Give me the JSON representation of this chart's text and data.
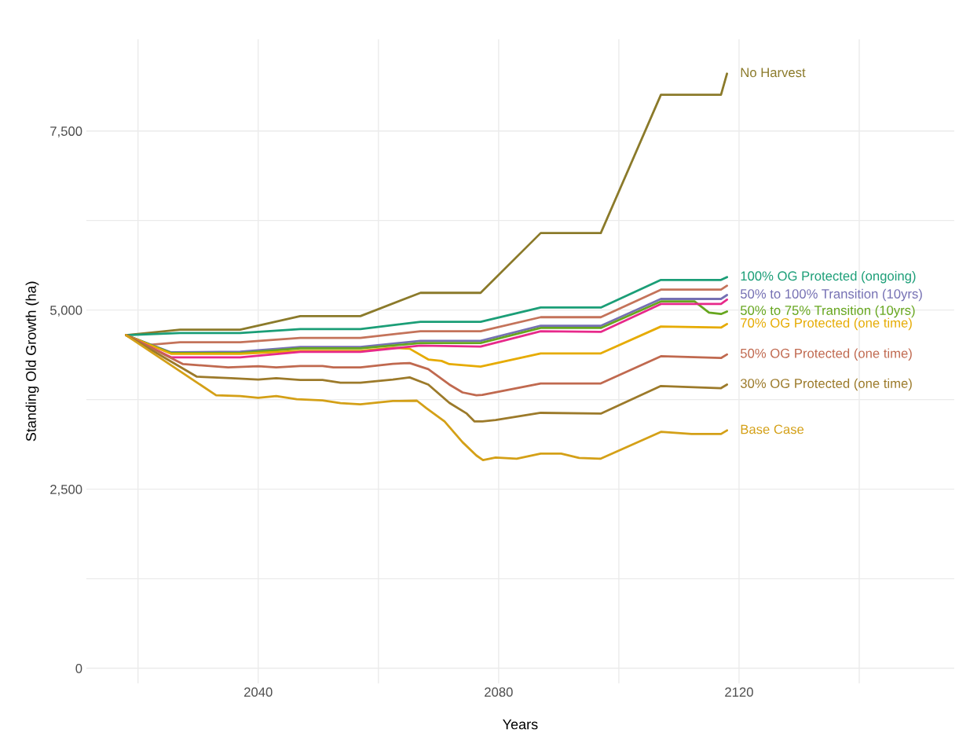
{
  "chart_data": {
    "type": "line",
    "xlabel": "Years",
    "ylabel": "Standing Old Growth (ha)",
    "xlim": [
      2011.4,
      2155.8
    ],
    "ylim": [
      -210,
      8780
    ],
    "xticks": [
      {
        "value": 2020,
        "label": null
      },
      2040,
      {
        "value": 2060,
        "label": null
      },
      2080,
      {
        "value": 2100,
        "label": null
      },
      2120,
      {
        "value": 2140,
        "label": null
      }
    ],
    "yticks": [
      0,
      {
        "value": 1250,
        "label": null
      },
      {
        "value": 2500,
        "label": "2,500"
      },
      {
        "value": 3750,
        "label": null
      },
      {
        "value": 5000,
        "label": "5,000"
      },
      {
        "value": 6250,
        "label": null
      },
      {
        "value": 7500,
        "label": "7,500"
      }
    ],
    "grid": true,
    "series": [
      {
        "name": "No Harvest",
        "color": "#8b7a2a",
        "x": [
          2018,
          2027,
          2037,
          2047,
          2057,
          2067,
          2077,
          2087,
          2097,
          2107,
          2117,
          2118
        ],
        "values": [
          4650,
          4725,
          4725,
          4915,
          4915,
          5240,
          5240,
          6075,
          6075,
          8005,
          8005,
          8300
        ]
      },
      {
        "name": "100% OG Protected (ongoing)",
        "color": "#1b9e77",
        "x": [
          2018,
          2027,
          2037,
          2047,
          2057,
          2067,
          2077,
          2087,
          2097,
          2107,
          2117,
          2118
        ],
        "values": [
          4650,
          4680,
          4680,
          4735,
          4735,
          4835,
          4835,
          5035,
          5035,
          5420,
          5420,
          5460
        ]
      },
      {
        "color": "#c4735a",
        "x": [
          2018,
          2022,
          2027,
          2037,
          2047,
          2057,
          2067,
          2077,
          2087,
          2097,
          2107,
          2117,
          2118
        ],
        "values": [
          4650,
          4515,
          4550,
          4550,
          4610,
          4610,
          4705,
          4705,
          4900,
          4900,
          5285,
          5285,
          5340
        ]
      },
      {
        "name": "50% to 100% Transition (10yrs)",
        "color": "#7570b3",
        "x": [
          2018,
          2025.5,
          2037,
          2047,
          2057,
          2067,
          2077,
          2087,
          2097,
          2107,
          2117,
          2118
        ],
        "values": [
          4650,
          4410,
          4420,
          4485,
          4485,
          4570,
          4570,
          4780,
          4780,
          5155,
          5155,
          5210
        ]
      },
      {
        "name": "50% to 75% Transition (10yrs)",
        "color": "#66a61e",
        "x": [
          2018,
          2025.5,
          2037,
          2047,
          2057,
          2067,
          2077,
          2087,
          2097,
          2107,
          2112.6,
          2115,
          2117,
          2118
        ],
        "values": [
          4650,
          4400,
          4400,
          4465,
          4465,
          4540,
          4540,
          4750,
          4750,
          5120,
          5120,
          4965,
          4945,
          4980
        ]
      },
      {
        "name": "70% OG Protected (one time)",
        "color": "#e6ab02",
        "x": [
          2018,
          2025.5,
          2037,
          2047,
          2057,
          2062.4,
          2065.2,
          2068.3,
          2070.5,
          2071.8,
          2077,
          2087,
          2097,
          2107,
          2117,
          2118
        ],
        "values": [
          4650,
          4390,
          4390,
          4430,
          4430,
          4475,
          4460,
          4310,
          4290,
          4245,
          4210,
          4395,
          4395,
          4770,
          4755,
          4805
        ]
      },
      {
        "color": "#e7298a",
        "x": [
          2018,
          2025.5,
          2037,
          2047,
          2057,
          2067,
          2077,
          2087,
          2097,
          2107,
          2117,
          2118
        ],
        "values": [
          4650,
          4340,
          4340,
          4415,
          4415,
          4505,
          4490,
          4705,
          4695,
          5085,
          5085,
          5145
        ]
      },
      {
        "name": "50% OG Protected (one time)",
        "color": "#c0694f",
        "x": [
          2018,
          2027.5,
          2035,
          2040,
          2043,
          2047,
          2050.7,
          2052.5,
          2057,
          2062.4,
          2065.2,
          2068.3,
          2071.8,
          2074,
          2076.3,
          2077.3,
          2087,
          2097,
          2107,
          2117,
          2118
        ],
        "values": [
          4650,
          4245,
          4200,
          4215,
          4200,
          4220,
          4220,
          4200,
          4200,
          4250,
          4260,
          4175,
          3960,
          3850,
          3810,
          3815,
          3975,
          3975,
          4355,
          4330,
          4380
        ]
      },
      {
        "name": "30% OG Protected (one time)",
        "color": "#9c7a2a",
        "x": [
          2018,
          2029.8,
          2035.5,
          2040,
          2043,
          2047,
          2050.7,
          2053.7,
          2057,
          2062.4,
          2065.2,
          2068.3,
          2071.8,
          2074.7,
          2076,
          2077.3,
          2079.5,
          2087,
          2097,
          2107,
          2117,
          2118
        ],
        "values": [
          4650,
          4070,
          4050,
          4030,
          4050,
          4025,
          4025,
          3985,
          3985,
          4030,
          4060,
          3960,
          3705,
          3555,
          3445,
          3445,
          3465,
          3565,
          3555,
          3940,
          3910,
          3960
        ]
      },
      {
        "name": "Base Case",
        "color": "#d4a017",
        "x": [
          2018,
          2033,
          2037,
          2040,
          2043,
          2046.4,
          2050.7,
          2053.7,
          2057,
          2062.4,
          2066.4,
          2068,
          2071,
          2074,
          2076.3,
          2077.4,
          2079.5,
          2083,
          2087,
          2090.4,
          2093.4,
          2097,
          2107,
          2112.1,
          2117,
          2118
        ],
        "values": [
          4650,
          3810,
          3800,
          3775,
          3800,
          3755,
          3740,
          3700,
          3685,
          3730,
          3735,
          3630,
          3445,
          3155,
          2970,
          2905,
          2940,
          2925,
          2995,
          2995,
          2935,
          2925,
          3300,
          3270,
          3270,
          3320
        ]
      }
    ]
  }
}
